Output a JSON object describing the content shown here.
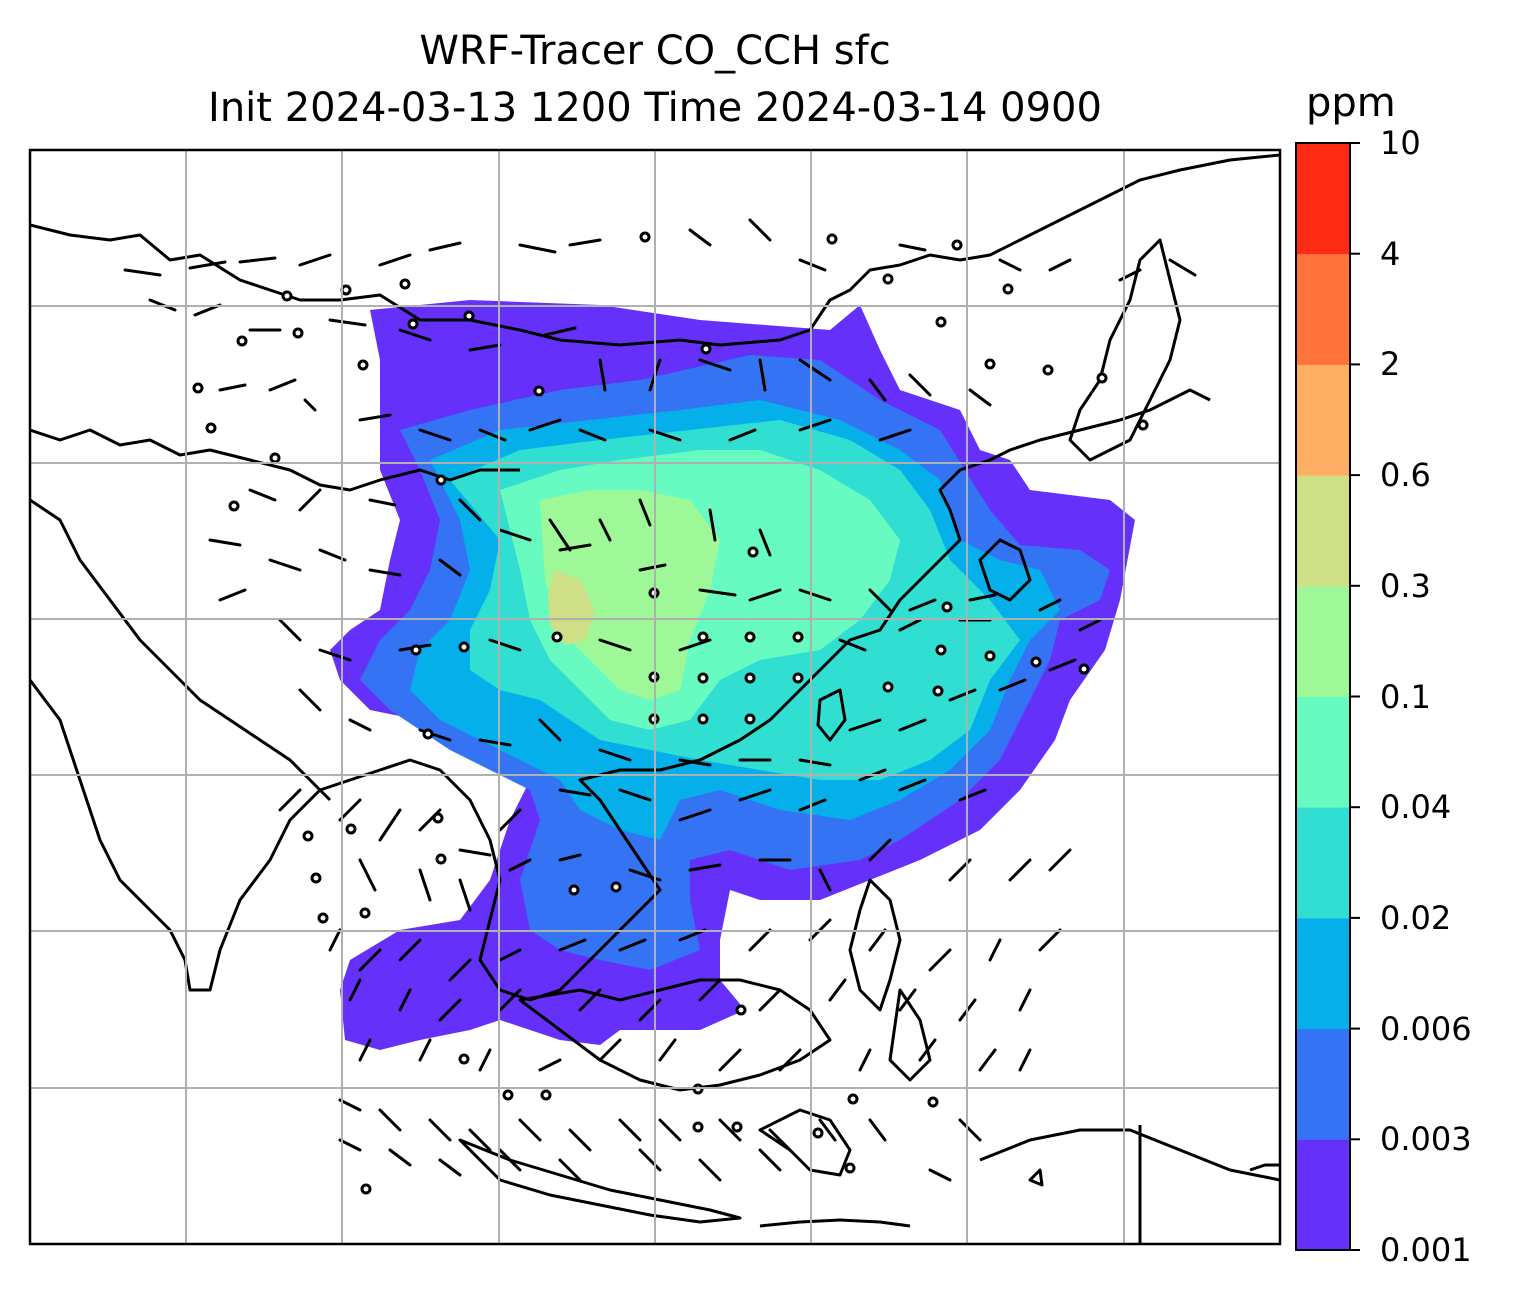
{
  "title_line1": "WRF-Tracer CO_CCH sfc",
  "title_line2": "Init 2024-03-13 1200 Time 2024-03-14 0900",
  "colorbar": {
    "unit": "ppm",
    "ticks": [
      "0.001",
      "0.003",
      "0.006",
      "0.02",
      "0.04",
      "0.1",
      "0.3",
      "0.6",
      "2",
      "4",
      "10"
    ],
    "colors": [
      "#6430fa",
      "#3473f3",
      "#05b0ea",
      "#30dfd1",
      "#67fbc1",
      "#9ff897",
      "#cfdf86",
      "#fdae62",
      "#ff723b",
      "#fe2b15"
    ]
  },
  "map": {
    "field": "CO_CCH surface tracer concentration",
    "overlay": "wind barbs",
    "region": "East / Southeast Asia"
  }
}
